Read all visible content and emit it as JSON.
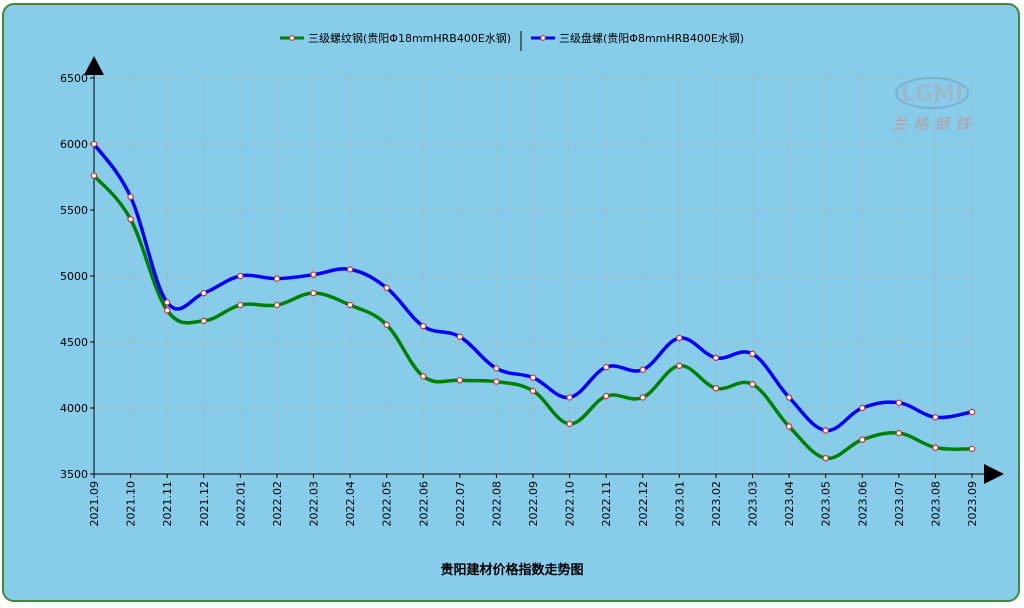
{
  "chart_data": {
    "type": "line",
    "title": "贵阳建材价格指数走势图",
    "ylim": [
      3500,
      6500
    ],
    "yticks": [
      3500,
      4000,
      4500,
      5000,
      5500,
      6000,
      6500
    ],
    "categories": [
      "2021.09",
      "2021.10",
      "2021.11",
      "2021.12",
      "2022.01",
      "2022.02",
      "2022.03",
      "2022.04",
      "2022.05",
      "2022.06",
      "2022.07",
      "2022.08",
      "2022.09",
      "2022.10",
      "2022.11",
      "2022.12",
      "2023.01",
      "2023.02",
      "2023.03",
      "2023.04",
      "2023.05",
      "2023.06",
      "2023.07",
      "2023.08",
      "2023.09"
    ],
    "grid": true,
    "legend_position": "top-center",
    "series": [
      {
        "name": "三级螺纹钢(贵阳Φ18mmHRB400E水钢)",
        "color": "#008000",
        "values": [
          5760,
          5430,
          4740,
          4660,
          4780,
          4780,
          4870,
          4780,
          4630,
          4240,
          4210,
          4200,
          4130,
          3880,
          4090,
          4080,
          4320,
          4150,
          4180,
          3860,
          3620,
          3760,
          3810,
          3700,
          3690
        ]
      },
      {
        "name": "三级盘螺(贵阳Φ8mmHRB400E水钢)",
        "color": "#0000ff",
        "values": [
          6000,
          5600,
          4800,
          4870,
          5000,
          4980,
          5010,
          5050,
          4910,
          4620,
          4540,
          4300,
          4230,
          4080,
          4310,
          4290,
          4530,
          4380,
          4410,
          4080,
          3830,
          4000,
          4040,
          3930,
          3970
        ]
      }
    ]
  },
  "watermark": {
    "logo_text": "LGMI",
    "sub_text": "兰格钢铁"
  },
  "colors": {
    "background": "#87cdea",
    "border": "#3e8a3a",
    "grid": "#b0b0b0",
    "marker_fill": "#ffffff",
    "marker_stroke": "#cc3333"
  }
}
